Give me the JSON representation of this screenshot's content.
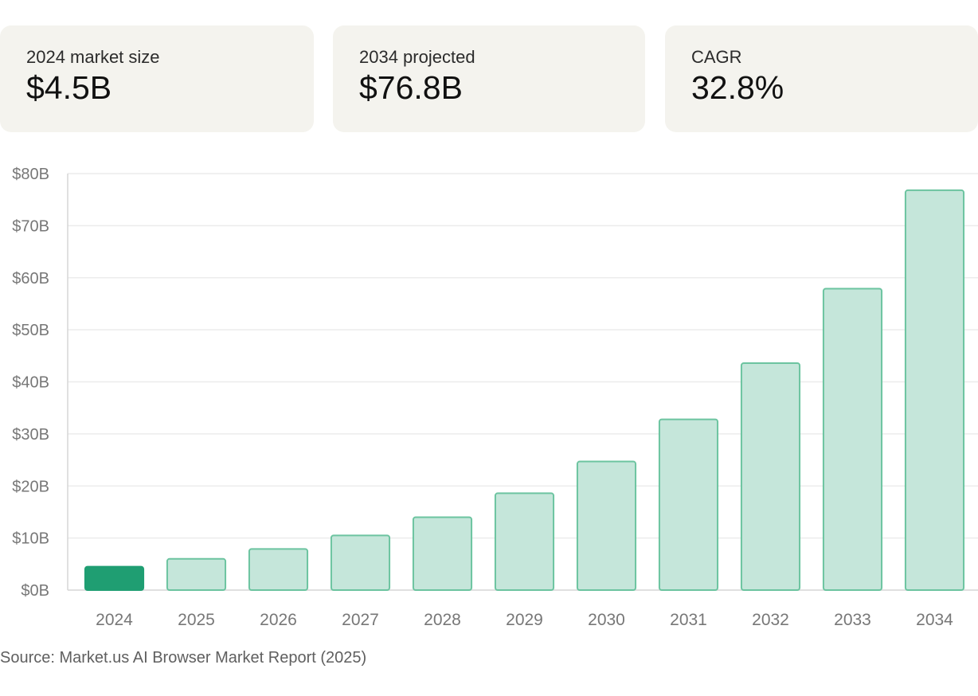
{
  "cards": [
    {
      "label": "2024 market size",
      "value": "$4.5B"
    },
    {
      "label": "2034 projected",
      "value": "$76.8B"
    },
    {
      "label": "CAGR",
      "value": "32.8%"
    }
  ],
  "colors": {
    "card_bg": "#f4f3ee",
    "bar_fill": "#c5e6da",
    "bar_stroke": "#6cc4a0",
    "highlight_fill": "#1f9e72",
    "grid": "#ececec",
    "axis_text": "#777777"
  },
  "chart_data": {
    "type": "bar",
    "categories": [
      "2024",
      "2025",
      "2026",
      "2027",
      "2028",
      "2029",
      "2030",
      "2031",
      "2032",
      "2033",
      "2034"
    ],
    "values": [
      4.5,
      6.0,
      7.9,
      10.5,
      14.0,
      18.6,
      24.7,
      32.8,
      43.6,
      57.9,
      76.8
    ],
    "highlight_category": "2024",
    "ylim": [
      0,
      80
    ],
    "y_ticks": [
      0,
      10,
      20,
      30,
      40,
      50,
      60,
      70,
      80
    ],
    "y_tick_labels": [
      "$0B",
      "$10B",
      "$20B",
      "$30B",
      "$40B",
      "$50B",
      "$60B",
      "$70B",
      "$80B"
    ],
    "grid": true,
    "legend": false
  },
  "source": "Source: Market.us AI Browser Market Report (2025)"
}
